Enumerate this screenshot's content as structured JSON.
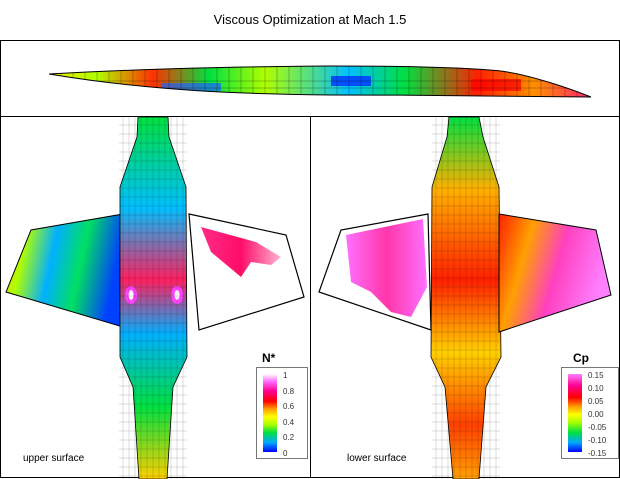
{
  "title": "Viscous Optimization at Mach 1.5",
  "panels": {
    "left": {
      "label": "upper surface",
      "legend_title": "N*",
      "ticks": [
        "1",
        "0.8",
        "0.6",
        "0.4",
        "0.2",
        "0"
      ]
    },
    "right": {
      "label": "lower surface",
      "legend_title": "Cp",
      "ticks": [
        "0.15",
        "0.10",
        "0.05",
        "0.00",
        "-0.05",
        "-0.10",
        "-0.15"
      ]
    }
  },
  "colormap": [
    "#0000ff",
    "#00a8ff",
    "#00e040",
    "#a8ff00",
    "#ffff00",
    "#ffa000",
    "#ff0000",
    "#ff0090",
    "#ff66ff",
    "#ffffff"
  ]
}
